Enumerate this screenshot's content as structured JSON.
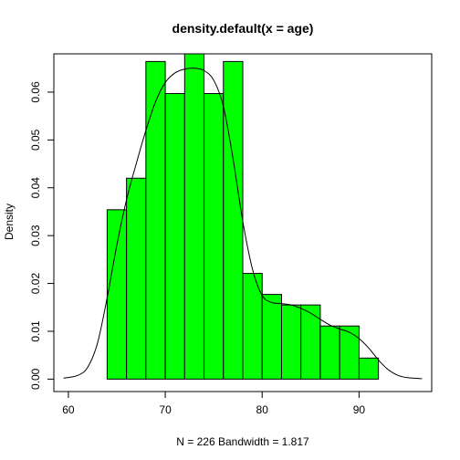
{
  "chart_data": {
    "type": "bar",
    "title": "density.default(x = age)",
    "xlabel": "N = 226   Bandwidth = 1.817",
    "ylabel": "Density",
    "xlim": [
      58.5,
      97.5
    ],
    "ylim": [
      -0.0026,
      0.068
    ],
    "x_ticks": [
      60,
      70,
      80,
      90
    ],
    "y_ticks": [
      0.0,
      0.01,
      0.02,
      0.03,
      0.04,
      0.05,
      0.06
    ],
    "y_tick_labels": [
      "0.00",
      "0.01",
      "0.02",
      "0.03",
      "0.04",
      "0.05",
      "0.06"
    ],
    "bin_edges": [
      64,
      66,
      68,
      70,
      72,
      74,
      76,
      78,
      80,
      82,
      84,
      86,
      88,
      90,
      92
    ],
    "values": [
      0.0354,
      0.042,
      0.0664,
      0.0597,
      0.0686,
      0.0597,
      0.0664,
      0.0221,
      0.0177,
      0.0155,
      0.0155,
      0.0111,
      0.0111,
      0.0044
    ],
    "bar_color": "#00ff00",
    "density_curve": {
      "x": [
        59.5,
        61,
        62,
        63,
        64,
        65,
        66,
        67,
        68,
        69,
        70,
        71,
        72,
        73,
        74,
        75,
        76,
        77,
        78,
        79,
        80,
        81,
        82,
        83,
        84,
        85,
        86,
        87,
        88,
        89,
        90,
        91,
        92,
        93,
        94,
        95,
        96.5
      ],
      "y": [
        0.0002,
        0.0008,
        0.0025,
        0.0075,
        0.017,
        0.028,
        0.0375,
        0.045,
        0.052,
        0.058,
        0.062,
        0.064,
        0.0648,
        0.065,
        0.0645,
        0.0625,
        0.057,
        0.046,
        0.033,
        0.023,
        0.0175,
        0.016,
        0.0158,
        0.0155,
        0.0148,
        0.0138,
        0.0125,
        0.0113,
        0.0105,
        0.0098,
        0.0085,
        0.0065,
        0.004,
        0.002,
        0.0008,
        0.0003,
        0.0001
      ]
    },
    "grid": false,
    "legend": "none"
  }
}
